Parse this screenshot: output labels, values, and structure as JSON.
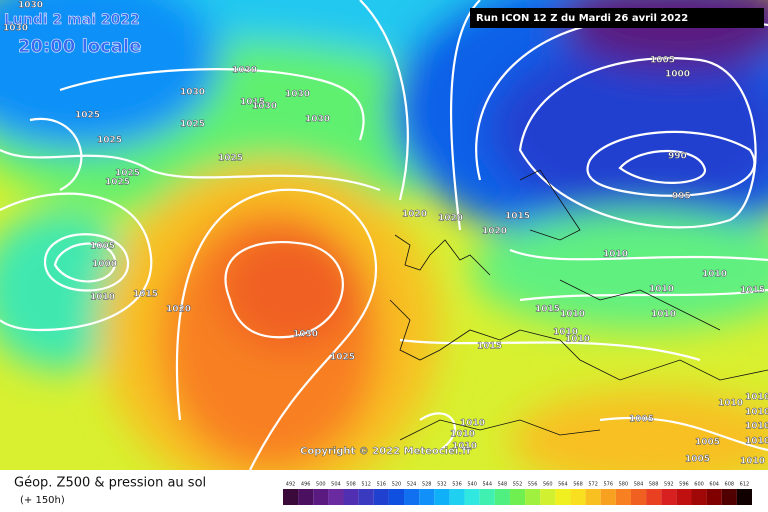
{
  "header": {
    "date": "Lundi 2 mai 2022",
    "time": "20:00 locale",
    "run": "Run ICON 12 Z du Mardi 26 avril 2022"
  },
  "copyright": "Copyright © 2022 Meteociel.fr",
  "legend": {
    "title": "Géop. Z500 & pression au sol",
    "subtitle": "(+ 150h)",
    "scale": [
      492,
      496,
      500,
      504,
      508,
      512,
      516,
      520,
      524,
      528,
      532,
      536,
      540,
      544,
      548,
      552,
      556,
      560,
      564,
      568,
      572,
      576,
      580,
      584,
      588,
      592,
      596,
      600,
      604,
      608,
      612
    ],
    "colors": [
      "#3a0a3a",
      "#4b1060",
      "#5a1a80",
      "#6a2aa0",
      "#5030b0",
      "#3a3ac0",
      "#2040d0",
      "#1050e0",
      "#1070f0",
      "#1090f8",
      "#10b0f8",
      "#20d0f0",
      "#30e8e0",
      "#40f0b0",
      "#50f080",
      "#70f050",
      "#a0f040",
      "#d0f030",
      "#f0f020",
      "#f8e020",
      "#f8c020",
      "#f8a020",
      "#f88020",
      "#f06020",
      "#e84020",
      "#d82020",
      "#c01010",
      "#a00808",
      "#800000",
      "#500000",
      "#100000"
    ]
  },
  "isobar_labels": [
    1030,
    1030,
    1030,
    1015,
    1030,
    1025,
    1025,
    1030,
    1030,
    1030,
    1025,
    1025,
    1025,
    1025,
    1005,
    1000,
    990,
    995,
    1020,
    1020,
    1015,
    1020,
    1005,
    1000,
    1010,
    1010,
    1010,
    1015,
    1010,
    1015,
    1020,
    1015,
    1010,
    1010,
    1030,
    1010,
    1010,
    1015,
    1025,
    1010,
    1010,
    1010,
    1010,
    1010,
    1010,
    1005,
    1005,
    1005,
    1010,
    1010,
    1010
  ]
}
